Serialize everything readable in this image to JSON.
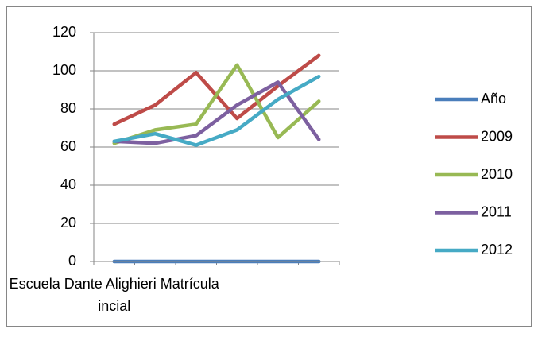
{
  "chart_data": {
    "type": "line",
    "categories": [
      "Escuela Dante Alighieri Matrícula incial",
      null,
      null,
      null,
      null,
      null
    ],
    "series": [
      {
        "name": "Año",
        "color": "#4a7ebb",
        "values": [
          0,
          0,
          0,
          0,
          0,
          0
        ]
      },
      {
        "name": "2009",
        "color": "#be4b48",
        "values": [
          72,
          82,
          99,
          75,
          92,
          108
        ]
      },
      {
        "name": "2010",
        "color": "#98b954",
        "values": [
          62,
          69,
          72,
          103,
          65,
          84
        ]
      },
      {
        "name": "2011",
        "color": "#7d60a0",
        "values": [
          63,
          62,
          66,
          82,
          94,
          64
        ]
      },
      {
        "name": "2012",
        "color": "#46aac5",
        "values": [
          63,
          67,
          61,
          69,
          85,
          97
        ]
      }
    ],
    "ylim": [
      0,
      120
    ],
    "yticks": [
      0,
      20,
      40,
      60,
      80,
      100,
      120
    ],
    "grid": true,
    "legend": "right"
  }
}
